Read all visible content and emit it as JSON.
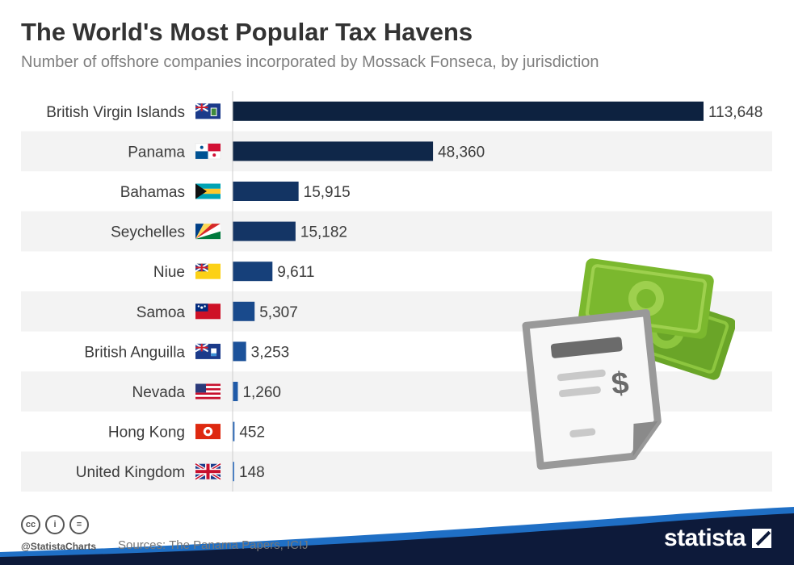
{
  "title": "The World's Most Popular Tax Havens",
  "subtitle": "Number of offshore companies incorporated by Mossack Fonseca, by jurisdiction",
  "chart_data": {
    "type": "bar",
    "orientation": "horizontal",
    "categories": [
      "British Virgin Islands",
      "Panama",
      "Bahamas",
      "Seychelles",
      "Niue",
      "Samoa",
      "British Anguilla",
      "Nevada",
      "Hong Kong",
      "United Kingdom"
    ],
    "values": [
      113648,
      48360,
      15915,
      15182,
      9611,
      5307,
      3253,
      1260,
      452,
      148
    ],
    "value_labels": [
      "113,648",
      "48,360",
      "15,915",
      "15,182",
      "9,611",
      "5,307",
      "3,253",
      "1,260",
      "452",
      "148"
    ],
    "flag_icons": [
      "bvi-flag-icon",
      "panama-flag-icon",
      "bahamas-flag-icon",
      "seychelles-flag-icon",
      "niue-flag-icon",
      "samoa-flag-icon",
      "anguilla-flag-icon",
      "usa-flag-icon",
      "hong-kong-flag-icon",
      "uk-flag-icon"
    ],
    "bar_colors": [
      "#0d2240",
      "#0f2749",
      "#133463",
      "#143565",
      "#16407a",
      "#194a8c",
      "#1c529a",
      "#1f5aa8",
      "#2262b4",
      "#2a6cc0"
    ],
    "xlim": [
      0,
      113648
    ],
    "grid": false,
    "legend": "none",
    "xlabel": "",
    "ylabel": ""
  },
  "footer": {
    "license_icons": [
      "creative-commons-icon",
      "attribution-icon",
      "no-derivatives-icon"
    ],
    "handle": "@StatistaCharts",
    "sources": "Sources: The Panama Papers, ICIJ",
    "brand": "statista"
  },
  "illustration_icons": [
    "money-bills-icon",
    "invoice-document-icon"
  ],
  "colors": {
    "title": "#333333",
    "subtitle": "#7f7f7f",
    "row_band": "#f3f3f3",
    "money_green": "#7bb82e",
    "brand_navy": "#0d1a3a",
    "brand_blue": "#1f6fc5"
  }
}
